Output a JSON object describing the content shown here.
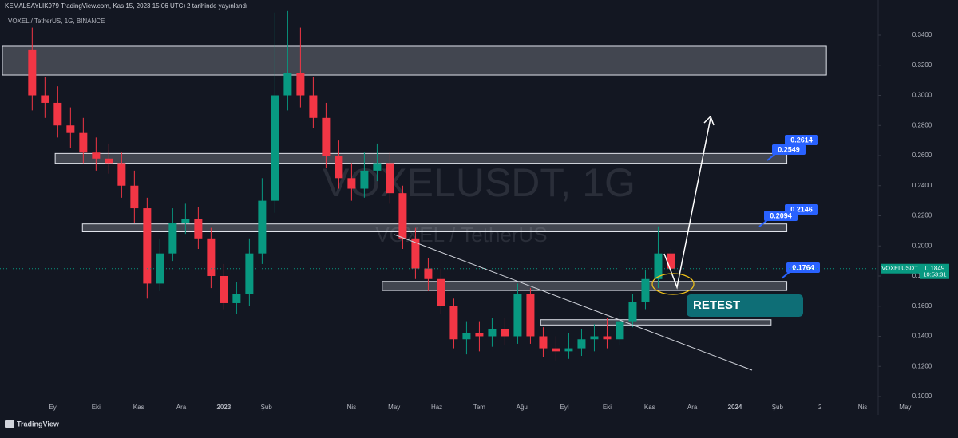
{
  "header": {
    "publisher": "KEMALSAYLIK979 TradingView.com, Kas 15, 2023 15:06 UTC+2 tarihinde yayınlandı",
    "symbol_line": "VOXEL / TetherUS, 1G, BINANCE"
  },
  "chart_data": {
    "type": "candlestick",
    "watermark": "VOXELUSDT, 1G",
    "watermark_sub": "VOXEL / TetherUS",
    "x": [
      -0.5,
      -0.2,
      0.1,
      0.4,
      0.7,
      1.0,
      1.3,
      1.6,
      1.9,
      2.2,
      2.5,
      2.8,
      3.1,
      3.4,
      3.7,
      4.0,
      4.3,
      4.6,
      4.9,
      5.2,
      5.5,
      5.8,
      6.1,
      6.4,
      6.7,
      7.0,
      7.3,
      7.6,
      7.9,
      8.2,
      8.5,
      8.8,
      9.1,
      9.4,
      9.7,
      10.0,
      10.3,
      10.6,
      10.9,
      11.2,
      11.5,
      11.8,
      12.1,
      12.4,
      12.7,
      13.0,
      13.3,
      13.6,
      13.9,
      14.2,
      14.5
    ],
    "series": [
      {
        "name": "VOXELUSDT",
        "up_color": "#089981",
        "down_color": "#f23645",
        "open": [
          0.33,
          0.3,
          0.295,
          0.28,
          0.275,
          0.262,
          0.258,
          0.255,
          0.24,
          0.225,
          0.175,
          0.195,
          0.215,
          0.218,
          0.205,
          0.18,
          0.162,
          0.168,
          0.195,
          0.23,
          0.3,
          0.315,
          0.3,
          0.285,
          0.26,
          0.245,
          0.238,
          0.25,
          0.255,
          0.235,
          0.205,
          0.185,
          0.178,
          0.16,
          0.138,
          0.142,
          0.14,
          0.145,
          0.14,
          0.168,
          0.14,
          0.132,
          0.13,
          0.132,
          0.138,
          0.14,
          0.138,
          0.15,
          0.163,
          0.178,
          0.195
        ],
        "high": [
          0.345,
          0.312,
          0.306,
          0.292,
          0.285,
          0.272,
          0.268,
          0.262,
          0.25,
          0.232,
          0.205,
          0.225,
          0.228,
          0.226,
          0.212,
          0.188,
          0.176,
          0.205,
          0.245,
          0.355,
          0.356,
          0.345,
          0.312,
          0.295,
          0.27,
          0.255,
          0.262,
          0.268,
          0.262,
          0.24,
          0.212,
          0.192,
          0.185,
          0.165,
          0.15,
          0.15,
          0.152,
          0.152,
          0.175,
          0.172,
          0.146,
          0.14,
          0.142,
          0.145,
          0.148,
          0.152,
          0.156,
          0.168,
          0.184,
          0.213,
          0.198
        ],
        "low": [
          0.29,
          0.285,
          0.272,
          0.265,
          0.255,
          0.25,
          0.248,
          0.232,
          0.215,
          0.165,
          0.17,
          0.19,
          0.208,
          0.198,
          0.172,
          0.158,
          0.155,
          0.16,
          0.188,
          0.222,
          0.29,
          0.292,
          0.278,
          0.252,
          0.238,
          0.23,
          0.232,
          0.243,
          0.228,
          0.198,
          0.178,
          0.17,
          0.155,
          0.132,
          0.128,
          0.13,
          0.133,
          0.134,
          0.135,
          0.135,
          0.126,
          0.124,
          0.125,
          0.127,
          0.13,
          0.132,
          0.134,
          0.146,
          0.158,
          0.172,
          0.178
        ],
        "close": [
          0.3,
          0.295,
          0.28,
          0.275,
          0.262,
          0.258,
          0.255,
          0.24,
          0.225,
          0.175,
          0.195,
          0.215,
          0.218,
          0.205,
          0.18,
          0.162,
          0.168,
          0.195,
          0.23,
          0.3,
          0.315,
          0.3,
          0.285,
          0.26,
          0.245,
          0.238,
          0.25,
          0.255,
          0.235,
          0.205,
          0.185,
          0.178,
          0.16,
          0.138,
          0.142,
          0.14,
          0.145,
          0.14,
          0.168,
          0.14,
          0.132,
          0.13,
          0.132,
          0.138,
          0.14,
          0.138,
          0.15,
          0.163,
          0.178,
          0.195,
          0.1849
        ]
      }
    ],
    "last_price": 0.1849,
    "countdown": "10:53:31",
    "zones": [
      {
        "x": [
          -1.2,
          18.15
        ],
        "range": [
          0.3135,
          0.3326
        ]
      },
      {
        "x": [
          0.04,
          17.22
        ],
        "range": [
          0.2549,
          0.2614
        ]
      },
      {
        "x": [
          0.68,
          17.22
        ],
        "range": [
          0.2094,
          0.2146
        ]
      },
      {
        "x": [
          7.72,
          17.22
        ],
        "range": [
          0.1704,
          0.1764
        ]
      },
      {
        "x": [
          11.44,
          16.85
        ],
        "range": [
          0.1475,
          0.151
        ]
      }
    ],
    "callouts": [
      0.2614,
      0.2549,
      0.2146,
      0.2094,
      0.1764
    ],
    "annotation": "RETEST",
    "xlim": [
      -1.256,
      21.24
    ],
    "ylim": [
      0.0931,
      0.3559
    ],
    "xticks": [
      {
        "value": 0,
        "label": "Eyl"
      },
      {
        "value": 1,
        "label": "Eki"
      },
      {
        "value": 2,
        "label": "Kas"
      },
      {
        "value": 3,
        "label": "Ara"
      },
      {
        "value": 4,
        "label": "2023"
      },
      {
        "value": 5,
        "label": "Şub"
      },
      {
        "value": 7,
        "label": "Nis"
      },
      {
        "value": 8,
        "label": "May"
      },
      {
        "value": 9,
        "label": "Haz"
      },
      {
        "value": 10,
        "label": "Tem"
      },
      {
        "value": 11,
        "label": "Ağu"
      },
      {
        "value": 12,
        "label": "Eyl"
      },
      {
        "value": 13,
        "label": "Eki"
      },
      {
        "value": 14,
        "label": "Kas"
      },
      {
        "value": 15,
        "label": "Ara"
      },
      {
        "value": 16,
        "label": "2024"
      },
      {
        "value": 17,
        "label": "Şub"
      },
      {
        "value": 18,
        "label": "2"
      },
      {
        "value": 19,
        "label": "Nis"
      },
      {
        "value": 20,
        "label": "May"
      }
    ],
    "yticks": [
      {
        "value": 0.1,
        "label": "0.1000"
      },
      {
        "value": 0.12,
        "label": "0.1200"
      },
      {
        "value": 0.14,
        "label": "0.1400"
      },
      {
        "value": 0.16,
        "label": "0.1600"
      },
      {
        "value": 0.18,
        "label": "0.1800"
      },
      {
        "value": 0.2,
        "label": "0.2000"
      },
      {
        "value": 0.22,
        "label": "0.2200"
      },
      {
        "value": 0.24,
        "label": "0.2400"
      },
      {
        "value": 0.26,
        "label": "0.2600"
      },
      {
        "value": 0.28,
        "label": "0.2800"
      },
      {
        "value": 0.3,
        "label": "0.3000"
      },
      {
        "value": 0.32,
        "label": "0.3200"
      },
      {
        "value": 0.34,
        "label": "0.3400"
      }
    ]
  },
  "footer": "TradingView"
}
